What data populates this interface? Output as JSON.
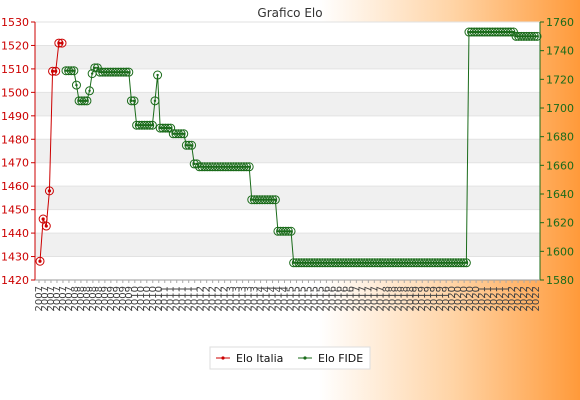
{
  "chart_data": {
    "type": "line",
    "title": "Grafico Elo",
    "y_left": {
      "ticks": [
        1420,
        1430,
        1440,
        1450,
        1460,
        1470,
        1480,
        1490,
        1500,
        1510,
        1520,
        1530
      ],
      "range": [
        1420,
        1530
      ],
      "color": "#cc0000"
    },
    "y_right": {
      "ticks": [
        1580,
        1600,
        1620,
        1640,
        1660,
        1680,
        1700,
        1720,
        1740,
        1760
      ],
      "range": [
        1580,
        1760
      ],
      "color": "#1a6b1a"
    },
    "grid": "horizontal alternating bands",
    "legend": "bottom-center",
    "x_tick_labels": [
      "2007",
      "2008",
      "2009",
      "2010",
      "2011",
      "2012",
      "2013",
      "2014",
      "2015",
      "2016",
      "2017",
      "2018",
      "2019",
      "2020",
      "2021",
      "2022"
    ],
    "series": [
      {
        "name": "Elo Italia",
        "axis": "left",
        "color": "#cc0000",
        "values": [
          1428,
          1446,
          1443,
          1458,
          1509,
          1509,
          1521,
          1521
        ]
      },
      {
        "name": "Elo FIDE",
        "axis": "right",
        "color": "#1a6b1a",
        "values": [
          1726,
          1726,
          1726,
          1726,
          1716,
          1705,
          1705,
          1705,
          1705,
          1712,
          1724,
          1728,
          1728,
          1725,
          1725,
          1725,
          1725,
          1725,
          1725,
          1725,
          1725,
          1725,
          1725,
          1725,
          1725,
          1705,
          1705,
          1688,
          1688,
          1688,
          1688,
          1688,
          1688,
          1688,
          1705,
          1723,
          1686,
          1686,
          1686,
          1686,
          1686,
          1682,
          1682,
          1682,
          1682,
          1682,
          1674,
          1674,
          1674,
          1661,
          1661,
          1659,
          1659,
          1659,
          1659,
          1659,
          1659,
          1659,
          1659,
          1659,
          1659,
          1659,
          1659,
          1659,
          1659,
          1659,
          1659,
          1659,
          1659,
          1659,
          1659,
          1636,
          1636,
          1636,
          1636,
          1636,
          1636,
          1636,
          1636,
          1636,
          1636,
          1614,
          1614,
          1614,
          1614,
          1614,
          1614,
          1592,
          1592,
          1592,
          1592,
          1592,
          1592,
          1592,
          1592,
          1592,
          1592,
          1592,
          1592,
          1592,
          1592,
          1592,
          1592,
          1592,
          1592,
          1592,
          1592,
          1592,
          1592,
          1592,
          1592,
          1592,
          1592,
          1592,
          1592,
          1592,
          1592,
          1592,
          1592,
          1592,
          1592,
          1592,
          1592,
          1592,
          1592,
          1592,
          1592,
          1592,
          1592,
          1592,
          1592,
          1592,
          1592,
          1592,
          1592,
          1592,
          1592,
          1592,
          1592,
          1592,
          1592,
          1592,
          1592,
          1592,
          1592,
          1592,
          1592,
          1592,
          1592,
          1592,
          1592,
          1592,
          1592,
          1592,
          1753,
          1753,
          1753,
          1753,
          1753,
          1753,
          1753,
          1753,
          1753,
          1753,
          1753,
          1753,
          1753,
          1753,
          1753,
          1753,
          1753,
          1753,
          1750,
          1750,
          1750,
          1750,
          1750,
          1750,
          1750,
          1750,
          1750
        ]
      }
    ]
  }
}
